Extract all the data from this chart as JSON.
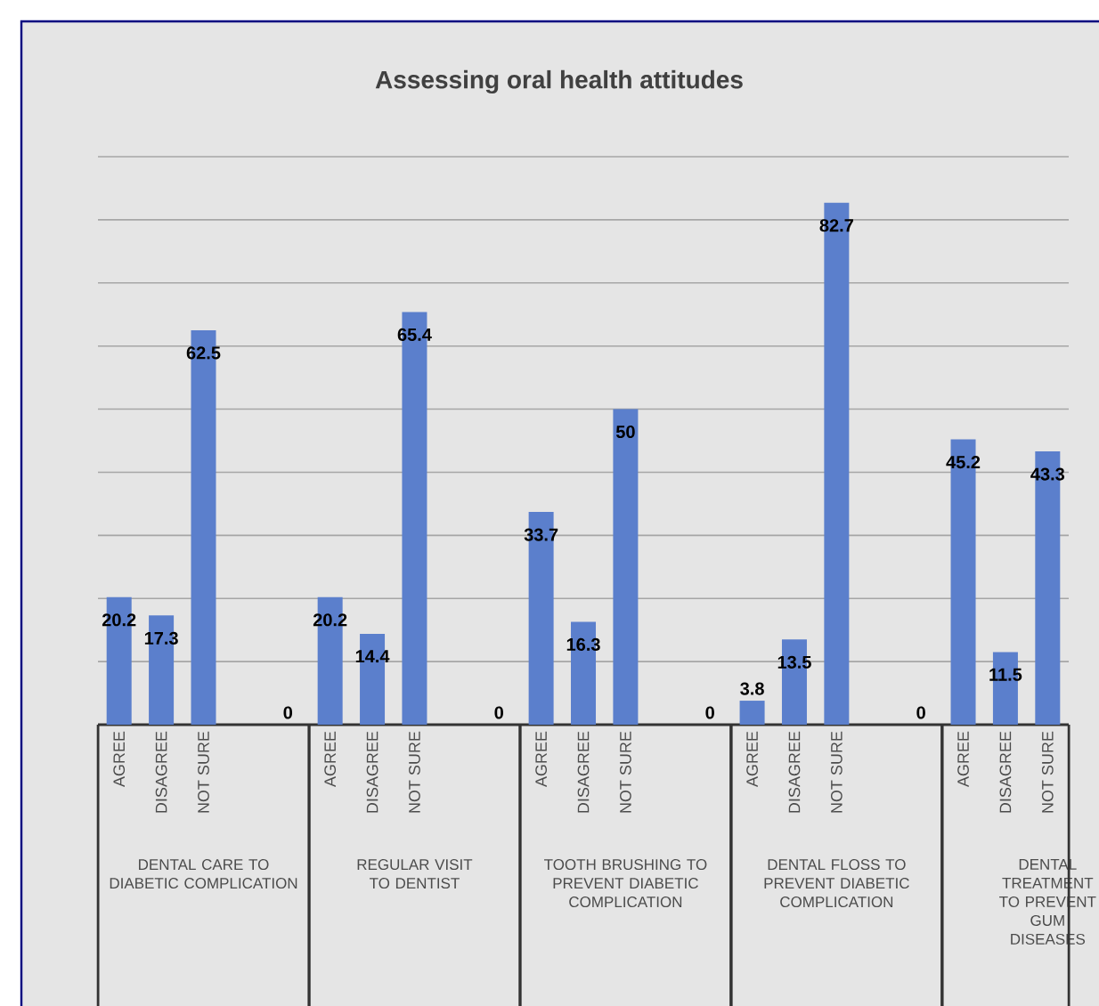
{
  "chart_data": {
    "type": "bar",
    "title": "Assessing oral health attitudes",
    "categories": [
      "AGREE",
      "DISAGREE",
      "NOT SURE",
      null,
      null,
      "AGREE",
      "DISAGREE",
      "NOT SURE",
      null,
      null,
      "AGREE",
      "DISAGREE",
      "NOT SURE",
      null,
      null,
      "AGREE",
      "DISAGREE",
      "NOT SURE",
      null,
      null,
      "AGREE",
      "DISAGREE",
      "NOT SURE"
    ],
    "values": [
      20.2,
      17.3,
      62.5,
      null,
      0,
      20.2,
      14.4,
      65.4,
      null,
      0,
      33.7,
      16.3,
      50,
      null,
      0,
      3.8,
      13.5,
      82.7,
      null,
      0,
      45.2,
      11.5,
      43.3
    ],
    "color": "#5b7fcc",
    "data_labels": true,
    "grid": "y",
    "tick_labels": "x",
    "ylim": [
      0,
      90
    ],
    "yticks": [
      {
        "value": 0,
        "label": null
      },
      {
        "value": 10,
        "label": null
      },
      {
        "value": 20,
        "label": null
      },
      {
        "value": 30,
        "label": null
      },
      {
        "value": 40,
        "label": null
      },
      {
        "value": 50,
        "label": null
      },
      {
        "value": 60,
        "label": null
      },
      {
        "value": 70,
        "label": null
      },
      {
        "value": 80,
        "label": null
      },
      {
        "value": 90,
        "label": null
      }
    ],
    "annotations": [
      "DENTAL CARE TO DIABETIC COMPLICATION",
      "REGULAR VISIT TO DENTIST",
      "TOOTH BRUSHING TO PREVENT DIABETIC COMPLICATION",
      "DENTAL FLOSS TO PREVENT DIABETIC COMPLICATION",
      "DENTAL TREATMENT TO PREVENT GUM DISEASES"
    ]
  }
}
